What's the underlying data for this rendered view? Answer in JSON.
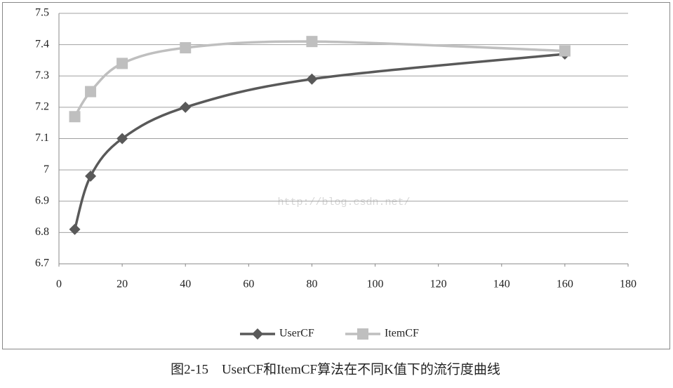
{
  "chart_data": {
    "type": "line",
    "caption": "图2-15　UserCF和ItemCF算法在不同K值下的流行度曲线",
    "watermark": "http://blog.csdn.net/",
    "x": [
      5,
      10,
      20,
      40,
      80,
      160
    ],
    "series": [
      {
        "name": "UserCF",
        "color": "#595959",
        "marker": "diamond",
        "values": [
          6.81,
          6.98,
          7.1,
          7.2,
          7.29,
          7.37
        ]
      },
      {
        "name": "ItemCF",
        "color": "#bfbfbf",
        "marker": "square",
        "values": [
          7.17,
          7.25,
          7.34,
          7.39,
          7.41,
          7.38
        ]
      }
    ],
    "xlim": [
      0,
      180
    ],
    "xticks": [
      0,
      20,
      40,
      60,
      80,
      100,
      120,
      140,
      160,
      180
    ],
    "ylim": [
      6.7,
      7.5
    ],
    "yticks": [
      6.7,
      6.8,
      6.9,
      7,
      7.1,
      7.2,
      7.3,
      7.4,
      7.5
    ],
    "grid": true,
    "legend": "bottom"
  }
}
